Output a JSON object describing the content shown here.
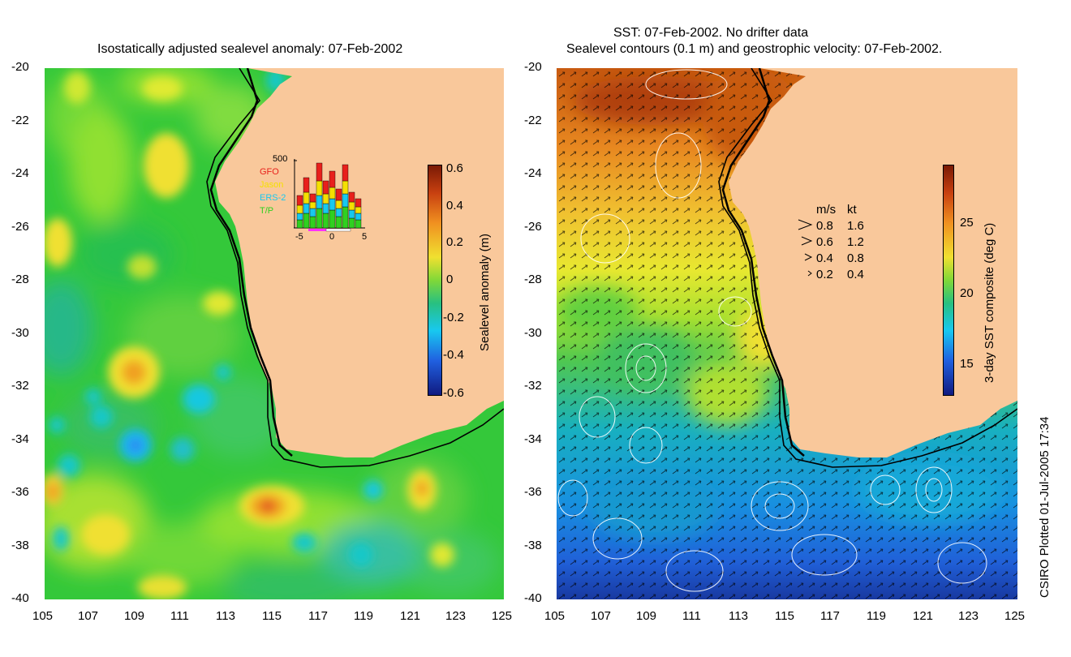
{
  "left": {
    "title": "Isostatically adjusted sealevel anomaly: 07-Feb-2002",
    "x_ticks": [
      "105",
      "107",
      "109",
      "111",
      "113",
      "115",
      "117",
      "119",
      "121",
      "123",
      "125"
    ],
    "y_ticks": [
      "-20",
      "-22",
      "-24",
      "-26",
      "-28",
      "-30",
      "-32",
      "-34",
      "-36",
      "-38",
      "-40"
    ],
    "colorbar": {
      "label": "Sealevel anomaly (m)",
      "ticks": [
        "0.6",
        "0.4",
        "0.2",
        "0",
        "-0.2",
        "-0.4",
        "-0.6"
      ]
    },
    "satellite_inset": {
      "count_label": "500",
      "missions": [
        {
          "name": "GFO",
          "color": "#e8201c"
        },
        {
          "name": "Jason",
          "color": "#f5e000"
        },
        {
          "name": "ERS-2",
          "color": "#18c8f0"
        },
        {
          "name": "T/P",
          "color": "#30d020"
        }
      ],
      "x_ticks": [
        "-5",
        "0",
        "5"
      ]
    }
  },
  "right": {
    "title_line1": "SST: 07-Feb-2002. No drifter data",
    "title_line2": "Sealevel contours (0.1 m) and geostrophic velocity: 07-Feb-2002.",
    "x_ticks": [
      "105",
      "107",
      "109",
      "111",
      "113",
      "115",
      "117",
      "119",
      "121",
      "123",
      "125"
    ],
    "y_ticks": [
      "-20",
      "-22",
      "-24",
      "-26",
      "-28",
      "-30",
      "-32",
      "-34",
      "-36",
      "-38",
      "-40"
    ],
    "colorbar": {
      "label": "3-day SST composite (deg C)",
      "ticks": [
        "25",
        "20",
        "15"
      ]
    },
    "velocity_legend": {
      "header_ms": "m/s",
      "header_kt": "kt",
      "rows": [
        {
          "ms": "0.8",
          "kt": "1.6"
        },
        {
          "ms": "0.6",
          "kt": "1.2"
        },
        {
          "ms": "0.4",
          "kt": "0.8"
        },
        {
          "ms": "0.2",
          "kt": "0.4"
        }
      ]
    }
  },
  "footer": "CSIRO Plotted 01-Jul-2005 17:34",
  "colors": {
    "land": "#f9c89b",
    "coast": "#000000",
    "contour": "#ffffff"
  }
}
